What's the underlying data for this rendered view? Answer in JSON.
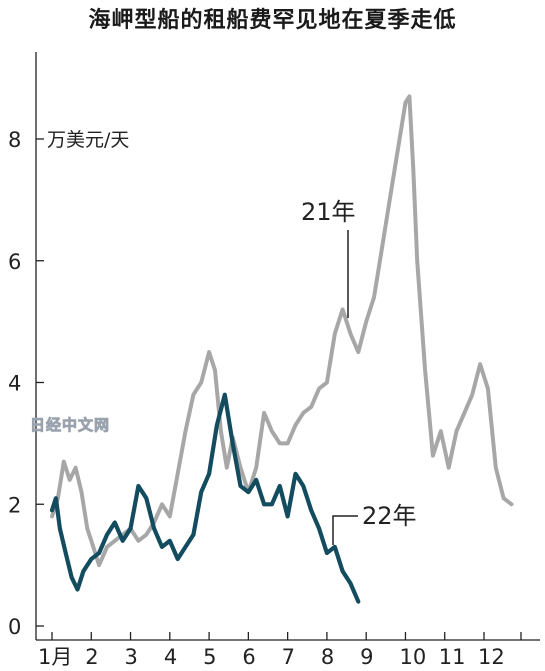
{
  "title": "海岬型船的租船费罕见地在夏季走低",
  "watermark": "日经中文网",
  "chart_data": {
    "type": "line",
    "unit_label": "万美元/天",
    "ylim": [
      0,
      9
    ],
    "yticks": [
      0,
      2,
      4,
      6,
      8
    ],
    "xticks": [
      "1月",
      "2",
      "3",
      "4",
      "5",
      "6",
      "7",
      "8",
      "9",
      "10",
      "11",
      "12"
    ],
    "xlim": [
      1,
      13
    ],
    "grid": false,
    "series": [
      {
        "name": "21年",
        "color": "#a7a7a7",
        "x": [
          1.0,
          1.15,
          1.3,
          1.45,
          1.6,
          1.75,
          1.9,
          2.0,
          2.2,
          2.4,
          2.6,
          2.8,
          3.0,
          3.2,
          3.4,
          3.6,
          3.8,
          4.0,
          4.2,
          4.4,
          4.6,
          4.8,
          5.0,
          5.15,
          5.3,
          5.45,
          5.6,
          5.8,
          6.0,
          6.2,
          6.4,
          6.6,
          6.8,
          7.0,
          7.2,
          7.4,
          7.6,
          7.8,
          8.0,
          8.2,
          8.4,
          8.6,
          8.8,
          9.0,
          9.2,
          9.4,
          9.6,
          9.8,
          10.0,
          10.1,
          10.2,
          10.3,
          10.5,
          10.7,
          10.9,
          11.1,
          11.3,
          11.5,
          11.7,
          11.9,
          12.1,
          12.3,
          12.5,
          12.7
        ],
        "values": [
          1.8,
          2.1,
          2.7,
          2.4,
          2.6,
          2.2,
          1.6,
          1.4,
          1.0,
          1.3,
          1.4,
          1.5,
          1.6,
          1.4,
          1.5,
          1.7,
          2.0,
          1.8,
          2.5,
          3.2,
          3.8,
          4.0,
          4.5,
          4.2,
          3.2,
          2.6,
          3.1,
          2.6,
          2.2,
          2.6,
          3.5,
          3.2,
          3.0,
          3.0,
          3.3,
          3.5,
          3.6,
          3.9,
          4.0,
          4.8,
          5.2,
          4.8,
          4.5,
          5.0,
          5.4,
          6.2,
          7.0,
          7.8,
          8.6,
          8.7,
          7.5,
          6.0,
          4.2,
          2.8,
          3.2,
          2.6,
          3.2,
          3.5,
          3.8,
          4.3,
          3.9,
          2.6,
          2.1,
          2.0
        ]
      },
      {
        "name": "22年",
        "color": "#124c5e",
        "x": [
          1.0,
          1.1,
          1.2,
          1.35,
          1.5,
          1.65,
          1.8,
          2.0,
          2.2,
          2.4,
          2.6,
          2.8,
          3.0,
          3.2,
          3.4,
          3.6,
          3.8,
          4.0,
          4.2,
          4.4,
          4.6,
          4.8,
          5.0,
          5.2,
          5.4,
          5.6,
          5.8,
          6.0,
          6.2,
          6.4,
          6.6,
          6.8,
          7.0,
          7.2,
          7.4,
          7.6,
          7.8,
          8.0,
          8.2,
          8.4,
          8.6,
          8.8
        ],
        "values": [
          1.9,
          2.1,
          1.6,
          1.2,
          0.8,
          0.6,
          0.9,
          1.1,
          1.2,
          1.5,
          1.7,
          1.4,
          1.6,
          2.3,
          2.1,
          1.6,
          1.3,
          1.4,
          1.1,
          1.3,
          1.5,
          2.2,
          2.5,
          3.3,
          3.8,
          3.0,
          2.3,
          2.2,
          2.4,
          2.0,
          2.0,
          2.3,
          1.8,
          2.5,
          2.3,
          1.9,
          1.6,
          1.2,
          1.3,
          0.9,
          0.7,
          0.4
        ]
      }
    ]
  }
}
